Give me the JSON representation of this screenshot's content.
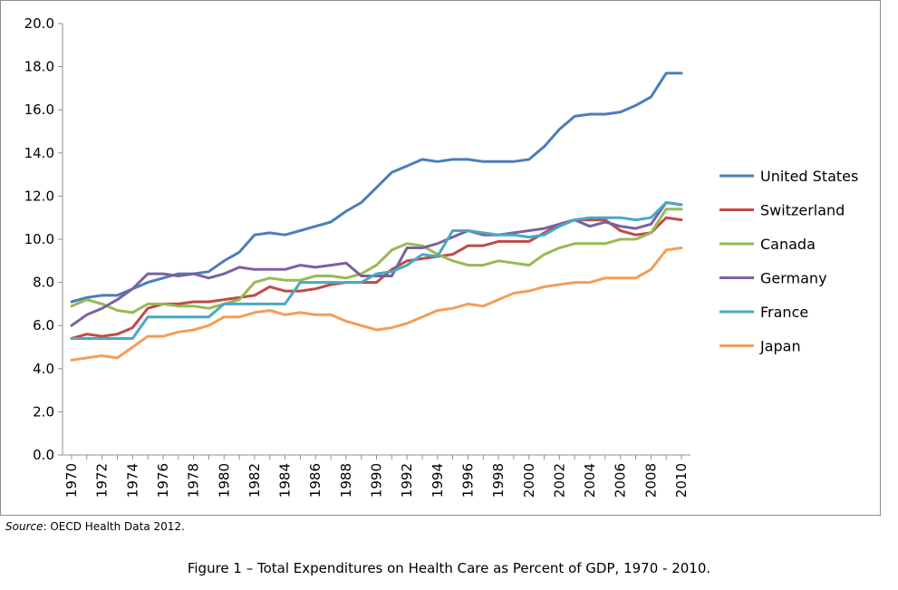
{
  "chart_data": {
    "type": "line",
    "title": "",
    "xlabel": "",
    "ylabel": "",
    "ylim": [
      0,
      20
    ],
    "yticks": [
      "0.0",
      "2.0",
      "4.0",
      "6.0",
      "8.0",
      "10.0",
      "12.0",
      "14.0",
      "16.0",
      "18.0",
      "20.0"
    ],
    "xlim": [
      1970,
      2010
    ],
    "xticks": [
      "1970",
      "1972",
      "1974",
      "1976",
      "1978",
      "1980",
      "1982",
      "1984",
      "1986",
      "1988",
      "1990",
      "1992",
      "1994",
      "1996",
      "1998",
      "2000",
      "2002",
      "2004",
      "2006",
      "2008",
      "2010"
    ],
    "grid": "horizontal",
    "legend_position": "right",
    "x": [
      1970,
      1971,
      1972,
      1973,
      1974,
      1975,
      1976,
      1977,
      1978,
      1979,
      1980,
      1981,
      1982,
      1983,
      1984,
      1985,
      1986,
      1987,
      1988,
      1989,
      1990,
      1991,
      1992,
      1993,
      1994,
      1995,
      1996,
      1997,
      1998,
      1999,
      2000,
      2001,
      2002,
      2003,
      2004,
      2005,
      2006,
      2007,
      2008,
      2009,
      2010
    ],
    "series": [
      {
        "name": "United States",
        "color": "#4a7ebb",
        "values": [
          7.1,
          7.3,
          7.4,
          7.4,
          7.7,
          8.0,
          8.2,
          8.4,
          8.4,
          8.5,
          9.0,
          9.4,
          10.2,
          10.3,
          10.2,
          10.4,
          10.6,
          10.8,
          11.3,
          11.7,
          12.4,
          13.1,
          13.4,
          13.7,
          13.6,
          13.7,
          13.7,
          13.6,
          13.6,
          13.6,
          13.7,
          14.3,
          15.1,
          15.7,
          15.8,
          15.8,
          15.9,
          16.2,
          16.6,
          17.7,
          17.7
        ]
      },
      {
        "name": "Switzerland",
        "color": "#be4b48",
        "values": [
          5.4,
          5.6,
          5.5,
          5.6,
          5.9,
          6.8,
          7.0,
          7.0,
          7.1,
          7.1,
          7.2,
          7.3,
          7.4,
          7.8,
          7.6,
          7.6,
          7.7,
          7.9,
          8.0,
          8.0,
          8.0,
          8.6,
          9.0,
          9.1,
          9.2,
          9.3,
          9.7,
          9.7,
          9.9,
          9.9,
          9.9,
          10.3,
          10.7,
          10.9,
          10.9,
          10.9,
          10.4,
          10.2,
          10.3,
          11.0,
          10.9
        ]
      },
      {
        "name": "Canada",
        "color": "#98b954",
        "values": [
          6.9,
          7.2,
          7.0,
          6.7,
          6.6,
          7.0,
          7.0,
          6.9,
          6.9,
          6.8,
          7.0,
          7.2,
          8.0,
          8.2,
          8.1,
          8.1,
          8.3,
          8.3,
          8.2,
          8.4,
          8.8,
          9.5,
          9.8,
          9.7,
          9.3,
          9.0,
          8.8,
          8.8,
          9.0,
          8.9,
          8.8,
          9.3,
          9.6,
          9.8,
          9.8,
          9.8,
          10.0,
          10.0,
          10.3,
          11.4,
          11.4
        ]
      },
      {
        "name": "Germany",
        "color": "#7d60a0",
        "values": [
          6.0,
          6.5,
          6.8,
          7.2,
          7.7,
          8.4,
          8.4,
          8.3,
          8.4,
          8.2,
          8.4,
          8.7,
          8.6,
          8.6,
          8.6,
          8.8,
          8.7,
          8.8,
          8.9,
          8.3,
          8.3,
          8.3,
          9.6,
          9.6,
          9.8,
          10.1,
          10.4,
          10.2,
          10.2,
          10.3,
          10.4,
          10.5,
          10.7,
          10.9,
          10.6,
          10.8,
          10.6,
          10.5,
          10.7,
          11.7,
          11.6
        ]
      },
      {
        "name": "France",
        "color": "#46aac5",
        "values": [
          5.4,
          5.4,
          5.4,
          5.4,
          5.4,
          6.4,
          6.4,
          6.4,
          6.4,
          6.4,
          7.0,
          7.0,
          7.0,
          7.0,
          7.0,
          8.0,
          8.0,
          8.0,
          8.0,
          8.0,
          8.4,
          8.5,
          8.8,
          9.3,
          9.2,
          10.4,
          10.4,
          10.3,
          10.2,
          10.2,
          10.1,
          10.2,
          10.6,
          10.9,
          11.0,
          11.0,
          11.0,
          10.9,
          11.0,
          11.7,
          11.6
        ]
      },
      {
        "name": "Japan",
        "color": "#f59d56",
        "values": [
          4.4,
          4.5,
          4.6,
          4.5,
          5.0,
          5.5,
          5.5,
          5.7,
          5.8,
          6.0,
          6.4,
          6.4,
          6.6,
          6.7,
          6.5,
          6.6,
          6.5,
          6.5,
          6.2,
          6.0,
          5.8,
          5.9,
          6.1,
          6.4,
          6.7,
          6.8,
          7.0,
          6.9,
          7.2,
          7.5,
          7.6,
          7.8,
          7.9,
          8.0,
          8.0,
          8.2,
          8.2,
          8.2,
          8.6,
          9.5,
          9.6
        ]
      }
    ]
  },
  "source": {
    "label": "Source",
    "text": ": OECD Health Data 2012."
  },
  "caption": "Figure 1 – Total Expenditures on Health Care as Percent of GDP, 1970 - 2010."
}
